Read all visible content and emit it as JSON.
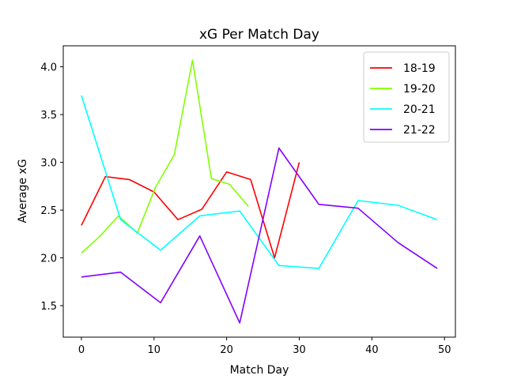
{
  "chart_data": {
    "type": "line",
    "title": "xG Per Match Day",
    "xlabel": "Match Day",
    "ylabel": "Average xG",
    "xlim": [
      -2.5,
      51.5
    ],
    "ylim": [
      1.17,
      4.22
    ],
    "xticks": [
      0,
      10,
      20,
      30,
      40,
      50
    ],
    "yticks": [
      1.5,
      2.0,
      2.5,
      3.0,
      3.5,
      4.0
    ],
    "xtick_labels": [
      "0",
      "10",
      "20",
      "30",
      "40",
      "50"
    ],
    "ytick_labels": [
      "1.5",
      "2.0",
      "2.5",
      "3.0",
      "3.5",
      "4.0"
    ],
    "grid": false,
    "legend_position": "top-right",
    "series": [
      {
        "name": "18-19",
        "color": "#ff0000",
        "x": [
          0,
          3.3,
          6.6,
          10,
          13.3,
          16.6,
          20,
          23.3,
          26.6,
          30
        ],
        "y": [
          2.34,
          2.85,
          2.82,
          2.69,
          2.4,
          2.51,
          2.9,
          2.82,
          2.0,
          3.0
        ]
      },
      {
        "name": "19-20",
        "color": "#80ff00",
        "x": [
          0,
          2.6,
          5.1,
          7.7,
          10.2,
          12.8,
          15.3,
          17.9,
          20.4,
          23
        ],
        "y": [
          2.05,
          2.23,
          2.44,
          2.26,
          2.74,
          3.08,
          4.07,
          2.83,
          2.77,
          2.54
        ]
      },
      {
        "name": "20-21",
        "color": "#00ffff",
        "x": [
          0,
          5.4,
          10.9,
          16.3,
          21.8,
          27.2,
          32.7,
          38.1,
          43.6,
          49
        ],
        "y": [
          3.7,
          2.4,
          2.08,
          2.44,
          2.49,
          1.92,
          1.89,
          2.6,
          2.55,
          2.4
        ]
      },
      {
        "name": "21-22",
        "color": "#8000ff",
        "x": [
          0,
          5.4,
          10.9,
          16.3,
          21.8,
          27.2,
          32.7,
          38.1,
          43.6,
          49
        ],
        "y": [
          1.8,
          1.85,
          1.53,
          2.23,
          1.32,
          3.15,
          2.56,
          2.52,
          2.16,
          1.89
        ]
      }
    ]
  }
}
